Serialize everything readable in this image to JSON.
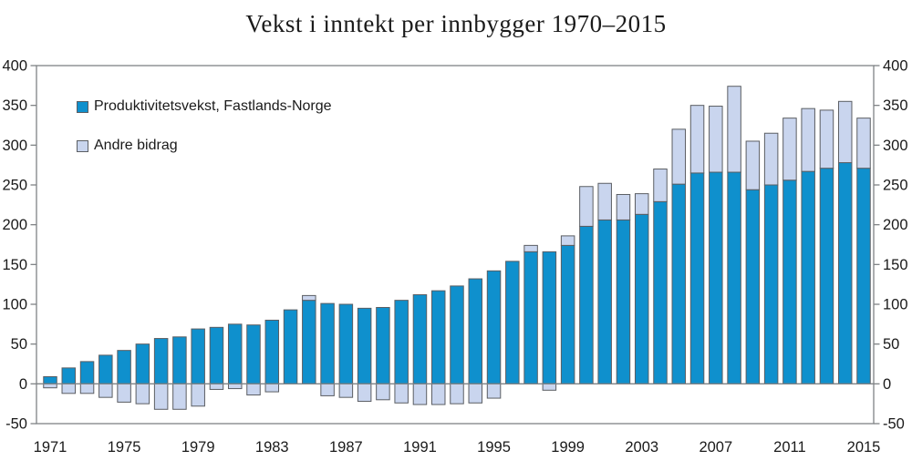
{
  "chart_data": {
    "type": "bar",
    "stacked": true,
    "title": "Vekst i inntekt per innbygger 1970–2015",
    "x": [
      1971,
      1972,
      1973,
      1974,
      1975,
      1976,
      1977,
      1978,
      1979,
      1980,
      1981,
      1982,
      1983,
      1984,
      1985,
      1986,
      1987,
      1988,
      1989,
      1990,
      1991,
      1992,
      1993,
      1994,
      1995,
      1996,
      1997,
      1998,
      1999,
      2000,
      2001,
      2002,
      2003,
      2004,
      2005,
      2006,
      2007,
      2008,
      2009,
      2010,
      2011,
      2012,
      2013,
      2014,
      2015
    ],
    "series": [
      {
        "name": "Produktivitetsvekst, Fastlands-Norge",
        "color": "#0f90cd",
        "values": [
          9,
          20,
          28,
          36,
          42,
          50,
          57,
          59,
          69,
          71,
          75,
          74,
          80,
          93,
          105,
          101,
          100,
          95,
          96,
          105,
          112,
          117,
          123,
          132,
          142,
          154,
          166,
          166,
          174,
          198,
          206,
          206,
          213,
          229,
          251,
          265,
          266,
          266,
          244,
          250,
          256,
          267,
          271,
          278,
          271
        ]
      },
      {
        "name": "Andre bidrag",
        "color": "#c9d5ee",
        "values": [
          -5,
          -12,
          -12,
          -17,
          -23,
          -25,
          -32,
          -32,
          -28,
          -7,
          -6,
          -14,
          -10,
          0,
          6,
          -15,
          -17,
          -22,
          -20,
          -24,
          -26,
          -26,
          -25,
          -24,
          -18,
          0,
          8,
          -8,
          12,
          50,
          46,
          32,
          26,
          41,
          69,
          85,
          83,
          108,
          61,
          65,
          78,
          79,
          73,
          77,
          63
        ]
      }
    ],
    "ylim": [
      -50,
      400
    ],
    "ytick_interval": 50,
    "ytick_labels": [
      "-50",
      "0",
      "50",
      "100",
      "150",
      "200",
      "250",
      "300",
      "350",
      "400"
    ],
    "xtick_labels": [
      "1971",
      "1975",
      "1979",
      "1983",
      "1987",
      "1991",
      "1995",
      "1999",
      "2003",
      "2007",
      "2011",
      "2015"
    ],
    "xlabel": "",
    "ylabel": "",
    "axis_label_sides": "both",
    "legend_position": "inside-top-left",
    "grid": false,
    "zero_line": true,
    "colors": {
      "bar_border": "#5b5e63",
      "axis_line": "#7f8285",
      "text": "#1a1a1a",
      "background": "#ffffff"
    }
  }
}
